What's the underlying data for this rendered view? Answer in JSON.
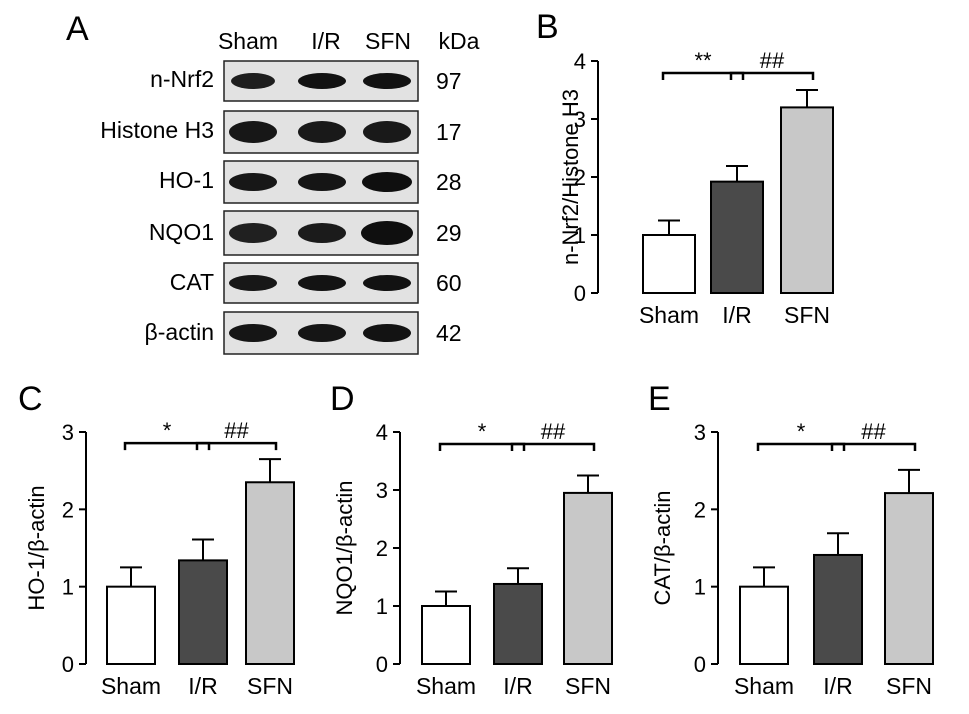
{
  "blot": {
    "panel_letter": "A",
    "columns": [
      "Sham",
      "I/R",
      "SFN"
    ],
    "kda_header": "kDa",
    "rows": [
      {
        "protein": "n-Nrf2",
        "kda": "97",
        "intensity": [
          0.72,
          0.95,
          0.95
        ]
      },
      {
        "protein": "Histone H3",
        "kda": "17",
        "intensity": [
          0.85,
          0.82,
          0.82
        ]
      },
      {
        "protein": "HO-1",
        "kda": "28",
        "intensity": [
          0.85,
          0.9,
          1.0
        ]
      },
      {
        "protein": "NQO1",
        "kda": "29",
        "intensity": [
          0.7,
          0.78,
          1.0
        ]
      },
      {
        "protein": "CAT",
        "kda": "60",
        "intensity": [
          0.85,
          0.92,
          0.95
        ]
      },
      {
        "protein": "β-actin",
        "kda": "42",
        "intensity": [
          0.9,
          0.9,
          0.92
        ]
      }
    ]
  },
  "chart_data": [
    {
      "panel_letter": "B",
      "type": "bar",
      "categories": [
        "Sham",
        "I/R",
        "SFN"
      ],
      "values": [
        1.0,
        1.92,
        3.2
      ],
      "errors": [
        0.25,
        0.27,
        0.3
      ],
      "bar_colors": [
        "#ffffff",
        "#4a4a4a",
        "#c8c8c8"
      ],
      "ylabel": "n-Nrf2/Histone H3",
      "ylim": [
        0,
        4
      ],
      "yticks": [
        "0",
        "1",
        "2",
        "3",
        "4"
      ],
      "significance": [
        {
          "from": 0,
          "to": 1,
          "label": "**"
        },
        {
          "from": 1,
          "to": 2,
          "label": "##"
        }
      ]
    },
    {
      "panel_letter": "C",
      "type": "bar",
      "categories": [
        "Sham",
        "I/R",
        "SFN"
      ],
      "values": [
        1.0,
        1.34,
        2.35
      ],
      "errors": [
        0.25,
        0.27,
        0.3
      ],
      "bar_colors": [
        "#ffffff",
        "#4a4a4a",
        "#c8c8c8"
      ],
      "ylabel": "HO-1/β-actin",
      "ylim": [
        0,
        3
      ],
      "yticks": [
        "0",
        "1",
        "2",
        "3"
      ],
      "significance": [
        {
          "from": 0,
          "to": 1,
          "label": "*"
        },
        {
          "from": 1,
          "to": 2,
          "label": "##"
        }
      ]
    },
    {
      "panel_letter": "D",
      "type": "bar",
      "categories": [
        "Sham",
        "I/R",
        "SFN"
      ],
      "values": [
        1.0,
        1.38,
        2.95
      ],
      "errors": [
        0.25,
        0.27,
        0.3
      ],
      "bar_colors": [
        "#ffffff",
        "#4a4a4a",
        "#c8c8c8"
      ],
      "ylabel": "NQO1/β-actin",
      "ylim": [
        0,
        4
      ],
      "yticks": [
        "0",
        "1",
        "2",
        "3",
        "4"
      ],
      "significance": [
        {
          "from": 0,
          "to": 1,
          "label": "*"
        },
        {
          "from": 1,
          "to": 2,
          "label": "##"
        }
      ]
    },
    {
      "panel_letter": "E",
      "type": "bar",
      "categories": [
        "Sham",
        "I/R",
        "SFN"
      ],
      "values": [
        1.0,
        1.41,
        2.21
      ],
      "errors": [
        0.25,
        0.28,
        0.3
      ],
      "bar_colors": [
        "#ffffff",
        "#4a4a4a",
        "#c8c8c8"
      ],
      "ylabel": "CAT/β-actin",
      "ylim": [
        0,
        3
      ],
      "yticks": [
        "0",
        "1",
        "2",
        "3"
      ],
      "significance": [
        {
          "from": 0,
          "to": 1,
          "label": "*"
        },
        {
          "from": 1,
          "to": 2,
          "label": "##"
        }
      ]
    }
  ]
}
